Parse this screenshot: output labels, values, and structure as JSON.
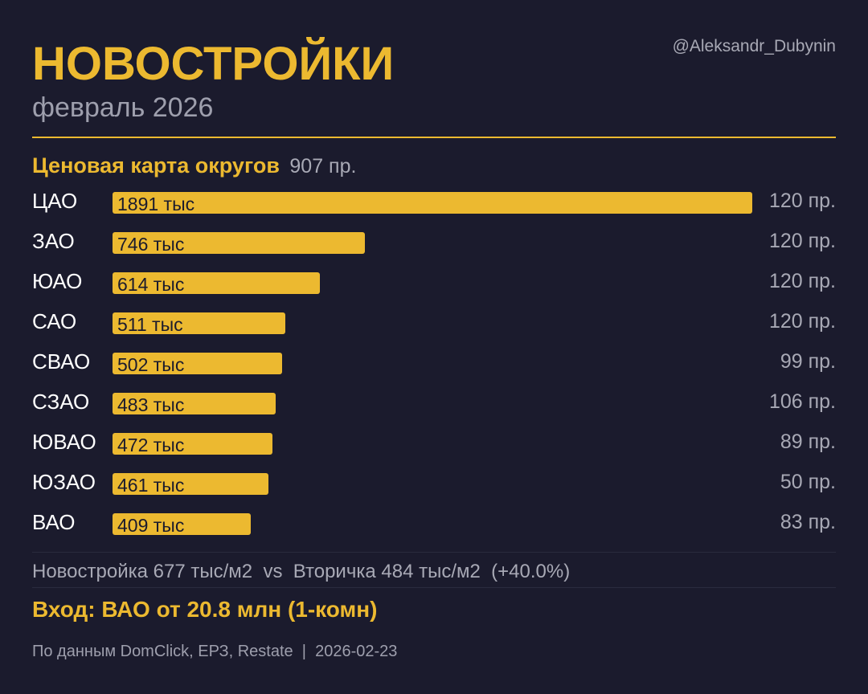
{
  "header": {
    "title": "НОВОСТРОЙКИ",
    "subtitle": "февраль 2026",
    "author": "@Aleksandr_Dubynin"
  },
  "section": {
    "title": "Ценовая карта округов",
    "count": "907 пр."
  },
  "chart_data": {
    "type": "bar",
    "orientation": "horizontal",
    "title": "Ценовая карта округов",
    "categories": [
      "ЦАО",
      "ЗАО",
      "ЮАО",
      "САО",
      "СВАО",
      "СЗАО",
      "ЮВАО",
      "ЮЗАО",
      "ВАО"
    ],
    "values": [
      1891,
      746,
      614,
      511,
      502,
      483,
      472,
      461,
      409
    ],
    "value_labels": [
      "1891 тыс",
      "746 тыс",
      "614 тыс",
      "511 тыс",
      "502 тыс",
      "483 тыс",
      "472 тыс",
      "461 тыс",
      "409 тыс"
    ],
    "counts": [
      "120 пр.",
      "120 пр.",
      "120 пр.",
      "120 пр.",
      "99 пр.",
      "106 пр.",
      "89 пр.",
      "50 пр.",
      "83 пр."
    ],
    "xlim": [
      0,
      1891
    ],
    "grid": false,
    "bar_color": "#ecb930"
  },
  "comparison": {
    "text": "Новостройка 677 тыс/м2  vs  Вторичка 484 тыс/м2  (+40.0%)"
  },
  "entry": {
    "text": "Вход: ВАО от 20.8 млн (1-комн)"
  },
  "footer": {
    "text": "По данным DomClick, ЕРЗ, Restate  |  2026-02-23"
  },
  "colors": {
    "background": "#1b1b2d",
    "accent": "#ecb930",
    "muted": "#a8a9b5"
  }
}
